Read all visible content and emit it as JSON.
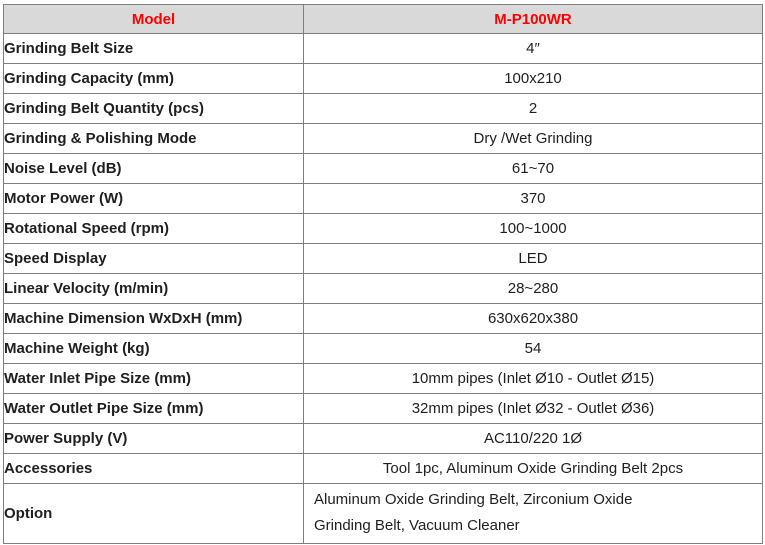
{
  "spec_table": {
    "header": {
      "model_label": "Model",
      "model_value": "M-P100WR"
    },
    "rows": [
      {
        "label": "Grinding Belt Size",
        "value": "4″"
      },
      {
        "label": "Grinding Capacity (mm)",
        "value": "100x210"
      },
      {
        "label": "Grinding Belt Quantity (pcs)",
        "value": "2"
      },
      {
        "label": "Grinding & Polishing Mode",
        "value": "Dry /Wet Grinding"
      },
      {
        "label": "Noise Level (dB)",
        "value": "61~70"
      },
      {
        "label": "Motor Power (W)",
        "value": "370"
      },
      {
        "label": "Rotational Speed (rpm)",
        "value": "100~1000"
      },
      {
        "label": "Speed Display",
        "value": "LED"
      },
      {
        "label": "Linear Velocity (m/min)",
        "value": "28~280"
      },
      {
        "label": "Machine Dimension WxDxH (mm)",
        "value": "630x620x380"
      },
      {
        "label": "Machine Weight (kg)",
        "value": "54"
      },
      {
        "label": "Water Inlet Pipe Size (mm)",
        "value": "10mm pipes (Inlet Ø10 - Outlet Ø15)"
      },
      {
        "label": "Water Outlet Pipe Size (mm)",
        "value": "32mm pipes (Inlet Ø32 - Outlet Ø36)"
      },
      {
        "label": "Power Supply (V)",
        "value": "AC110/220 1Ø"
      },
      {
        "label": "Accessories",
        "value": "Tool 1pc, Aluminum Oxide Grinding Belt 2pcs"
      },
      {
        "label": "Option",
        "value": "Aluminum Oxide Grinding Belt, Zirconium Oxide Grinding Belt, Vacuum Cleaner",
        "value_lines": [
          "Aluminum Oxide Grinding Belt, Zirconium Oxide",
          "Grinding Belt, Vacuum Cleaner"
        ]
      }
    ],
    "colors": {
      "header_bg": "#d9d9d9",
      "header_text": "#ff0000",
      "border": "#7f7f7f",
      "body_text": "#1f1f1f"
    }
  }
}
